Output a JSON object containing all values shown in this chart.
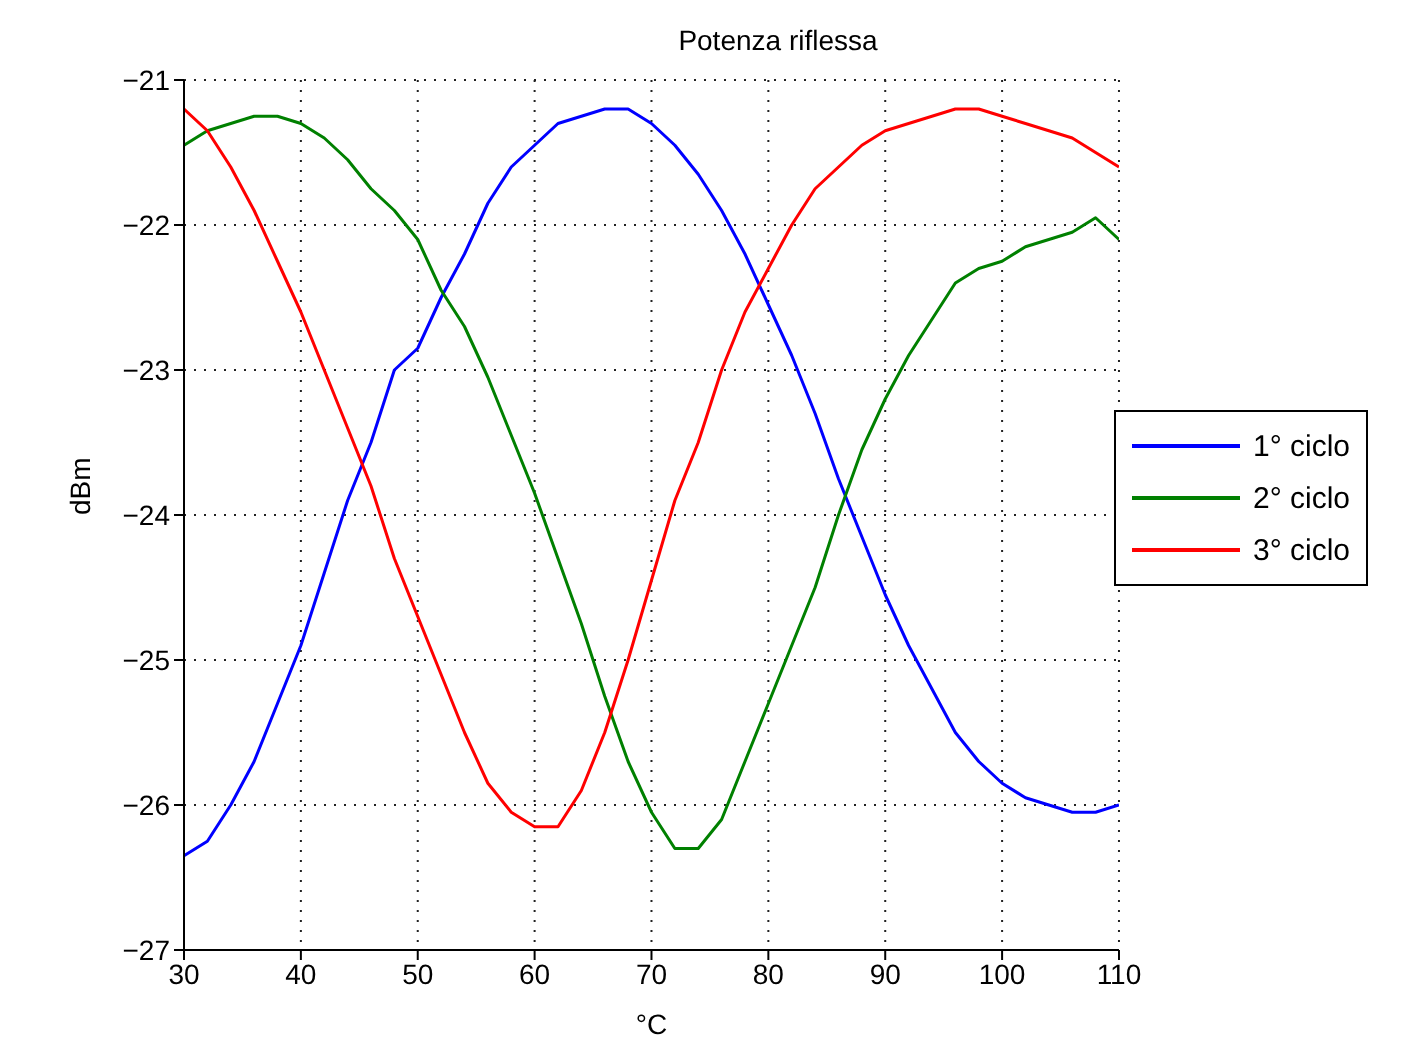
{
  "chart_data": {
    "type": "line",
    "title": "Potenza riflessa",
    "xlabel": "°C",
    "ylabel": "dBm",
    "x": [
      30,
      32,
      34,
      36,
      38,
      40,
      42,
      44,
      46,
      48,
      50,
      52,
      54,
      56,
      58,
      60,
      62,
      64,
      66,
      68,
      70,
      72,
      74,
      76,
      78,
      80,
      82,
      84,
      86,
      88,
      90,
      92,
      94,
      96,
      98,
      100,
      102,
      104,
      106,
      108,
      110
    ],
    "series": [
      {
        "name": "1° ciclo",
        "color": "#0000ff",
        "values": [
          -26.35,
          -26.25,
          -26.0,
          -25.7,
          -25.3,
          -24.9,
          -24.4,
          -23.9,
          -23.5,
          -23.0,
          -22.85,
          -22.5,
          -22.2,
          -21.85,
          -21.6,
          -21.45,
          -21.3,
          -21.25,
          -21.2,
          -21.2,
          -21.3,
          -21.45,
          -21.65,
          -21.9,
          -22.2,
          -22.55,
          -22.9,
          -23.3,
          -23.75,
          -24.15,
          -24.55,
          -24.9,
          -25.2,
          -25.5,
          -25.7,
          -25.85,
          -25.95,
          -26.0,
          -26.05,
          -26.05,
          -26.0
        ]
      },
      {
        "name": "2° ciclo",
        "color": "#008000",
        "values": [
          -21.45,
          -21.35,
          -21.3,
          -21.25,
          -21.25,
          -21.3,
          -21.4,
          -21.55,
          -21.75,
          -21.9,
          -22.1,
          -22.45,
          -22.7,
          -23.05,
          -23.45,
          -23.85,
          -24.3,
          -24.75,
          -25.25,
          -25.7,
          -26.05,
          -26.3,
          -26.3,
          -26.1,
          -25.7,
          -25.3,
          -24.9,
          -24.5,
          -24.0,
          -23.55,
          -23.2,
          -22.9,
          -22.65,
          -22.4,
          -22.3,
          -22.25,
          -22.15,
          -22.1,
          -22.05,
          -21.95,
          -22.1
        ]
      },
      {
        "name": "3° ciclo",
        "color": "#ff0000",
        "values": [
          -21.2,
          -21.35,
          -21.6,
          -21.9,
          -22.25,
          -22.6,
          -23.0,
          -23.4,
          -23.8,
          -24.3,
          -24.7,
          -25.1,
          -25.5,
          -25.85,
          -26.05,
          -26.15,
          -26.15,
          -25.9,
          -25.5,
          -25.0,
          -24.45,
          -23.9,
          -23.5,
          -23.0,
          -22.6,
          -22.3,
          -22.0,
          -21.75,
          -21.6,
          -21.45,
          -21.35,
          -21.3,
          -21.25,
          -21.2,
          -21.2,
          -21.25,
          -21.3,
          -21.35,
          -21.4,
          -21.5,
          -21.6
        ]
      }
    ],
    "xlim": [
      30,
      110
    ],
    "xticks": [
      30,
      40,
      50,
      60,
      70,
      80,
      90,
      100,
      110
    ],
    "ylim": [
      -27,
      -21
    ],
    "yticks": [
      {
        "value": -27,
        "label": "−27"
      },
      {
        "value": -26,
        "label": "−26"
      },
      {
        "value": -25,
        "label": "−25"
      },
      {
        "value": -24,
        "label": "−24"
      },
      {
        "value": -23,
        "label": "−23"
      },
      {
        "value": -22,
        "label": "−22"
      },
      {
        "value": -21,
        "label": "−21"
      }
    ],
    "grid": true,
    "legend": "right",
    "marker": "none",
    "line_style": "solid"
  }
}
